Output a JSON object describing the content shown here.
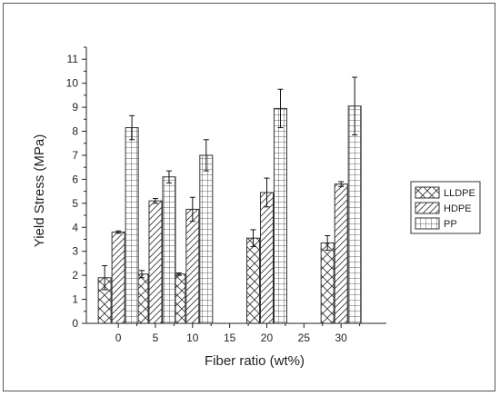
{
  "chart_data": {
    "type": "bar",
    "xlabel": "Fiber ratio (wt%)",
    "ylabel": "Yield Stress (MPa)",
    "ylim": [
      0,
      11.5
    ],
    "yticks": [
      "0",
      "1",
      "2",
      "3",
      "4",
      "5",
      "6",
      "7",
      "8",
      "9",
      "10",
      "11"
    ],
    "xlim": [
      -4.3,
      36.1
    ],
    "xticks": [
      "0",
      "5",
      "10",
      "15",
      "20",
      "25",
      "30"
    ],
    "categories": [
      "0",
      "5",
      "10",
      "20",
      "30"
    ],
    "x": [
      0,
      5,
      10,
      20,
      30
    ],
    "grid": false,
    "legend_position": "right",
    "series": [
      {
        "name": "LLDPE",
        "pattern": "crosshatch-diagonal",
        "values": [
          1.9,
          2.05,
          2.05,
          3.55,
          3.35
        ],
        "errors": [
          0.5,
          0.15,
          0.05,
          0.35,
          0.3
        ]
      },
      {
        "name": "HDPE",
        "pattern": "diagonal-lines",
        "values": [
          3.8,
          5.1,
          4.75,
          5.45,
          5.8
        ],
        "errors": [
          0.05,
          0.1,
          0.5,
          0.6,
          0.1
        ]
      },
      {
        "name": "PP",
        "pattern": "grid",
        "values": [
          8.15,
          6.1,
          7.0,
          8.95,
          9.05
        ],
        "errors": [
          0.5,
          0.25,
          0.65,
          0.8,
          1.2
        ]
      }
    ]
  }
}
